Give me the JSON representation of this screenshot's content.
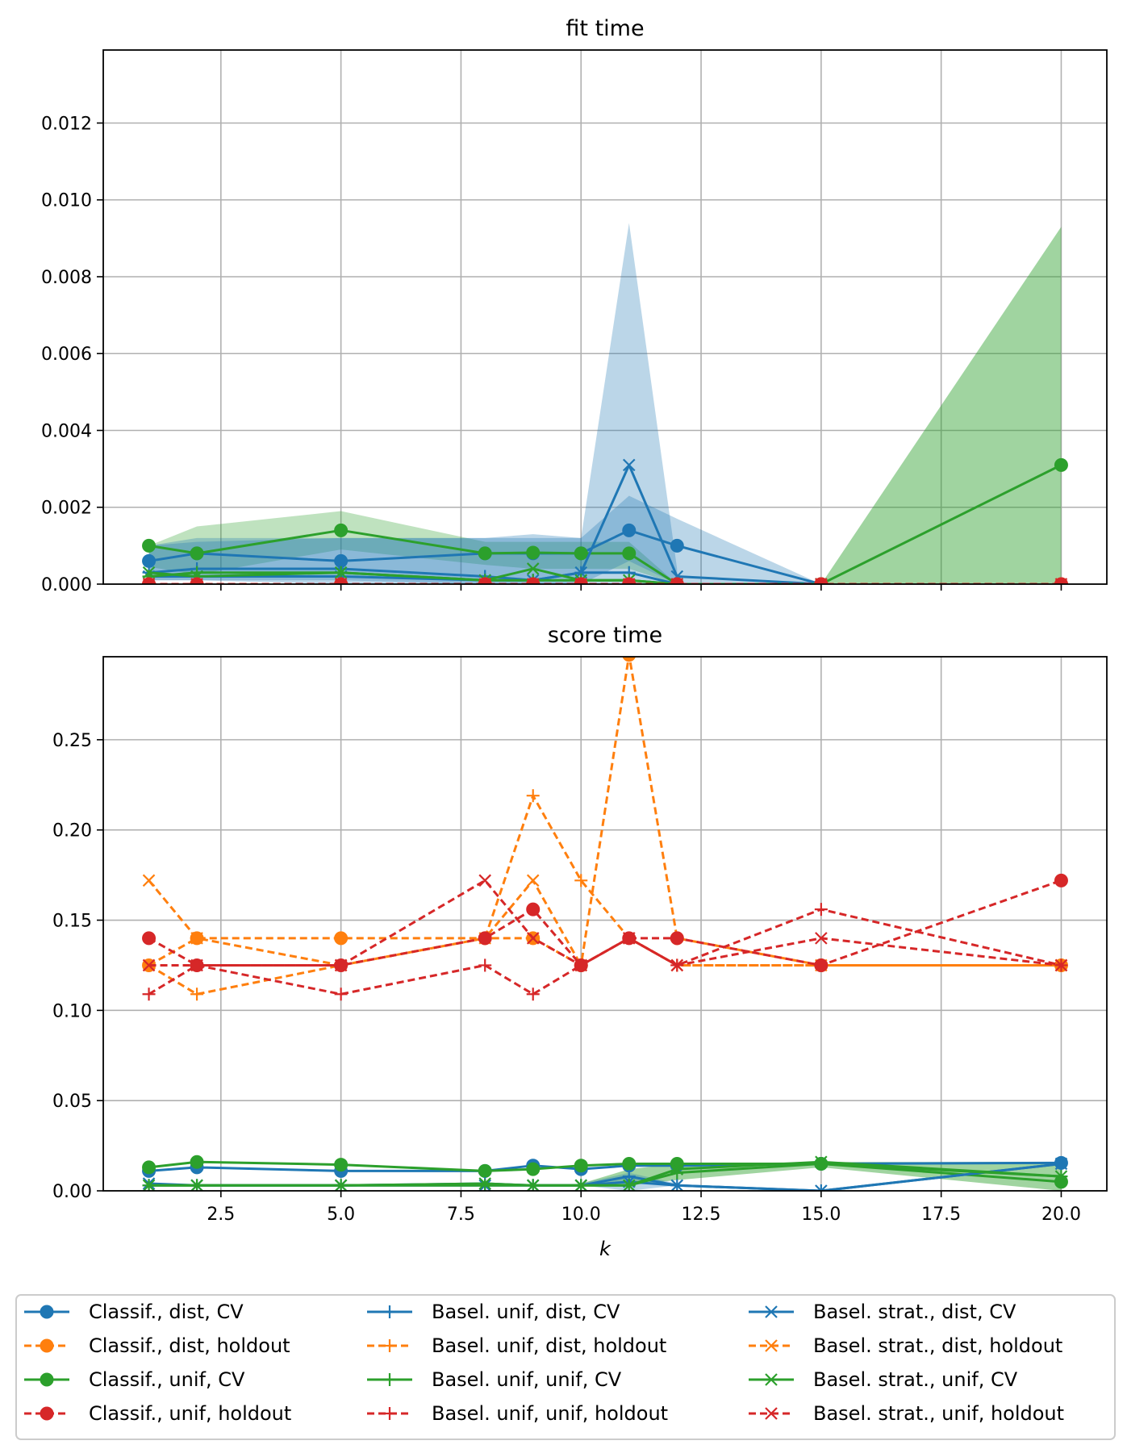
{
  "chart_data": [
    {
      "type": "line",
      "title": "fit time",
      "xlabel": "",
      "ylabel": "",
      "xlim": [
        0.05,
        20.95
      ],
      "ylim": [
        0,
        0.0139
      ],
      "xticks": [
        2.5,
        5.0,
        7.5,
        10.0,
        12.5,
        15.0,
        17.5,
        20.0
      ],
      "xticklabels": [],
      "yticks": [
        0.0,
        0.002,
        0.004,
        0.006,
        0.008,
        0.01,
        0.012
      ],
      "yticklabels": [
        "0.000",
        "0.002",
        "0.004",
        "0.006",
        "0.008",
        "0.010",
        "0.012"
      ],
      "grid": true,
      "bands": [
        {
          "color": "#2ca02c",
          "opacity": 0.3,
          "x": [
            1,
            2,
            5,
            8,
            9,
            10,
            11,
            12
          ],
          "lower": [
            0.00045,
            0.00025,
            0.0009,
            0.0005,
            0.0004,
            0.0004,
            0.0004,
            0.0
          ],
          "upper": [
            0.001,
            0.0015,
            0.0019,
            0.0011,
            0.0011,
            0.0011,
            0.0011,
            0.0
          ]
        },
        {
          "color": "#1f77b4",
          "opacity": 0.3,
          "x": [
            1,
            2,
            5,
            8,
            9,
            10,
            11,
            12
          ],
          "lower": [
            0.0001,
            0.0001,
            0.0001,
            0.0,
            0.0,
            0.0,
            0.0,
            0.0
          ],
          "upper": [
            0.001,
            0.0012,
            0.0012,
            0.0012,
            0.0013,
            0.0012,
            0.0094,
            0.0004
          ]
        },
        {
          "color": "#1f77b4",
          "opacity": 0.3,
          "x": [
            1,
            2,
            5,
            8,
            9,
            10,
            11,
            12,
            15
          ],
          "lower": [
            0.0001,
            0.0001,
            0.0,
            0.0,
            0.0,
            0.0,
            0.0006,
            0.0,
            0.0
          ],
          "upper": [
            0.001,
            0.0011,
            0.0012,
            0.0012,
            0.0012,
            0.0012,
            0.0023,
            0.0017,
            0.0
          ]
        },
        {
          "color": "#2ca02c",
          "opacity": 0.45,
          "x": [
            15,
            20
          ],
          "lower": [
            0.0,
            0.0
          ],
          "upper": [
            0.0,
            0.0093
          ]
        }
      ],
      "series": [
        {
          "name": "Classif., dist, CV",
          "color": "#1f77b4",
          "dash": "",
          "marker": "o",
          "x": [
            1,
            2,
            5,
            8,
            9,
            10,
            11,
            12,
            15
          ],
          "y": [
            0.0006,
            0.0008,
            0.0006,
            0.0008,
            0.0008,
            0.0008,
            0.0014,
            0.001,
            0.0
          ]
        },
        {
          "name": "Classif., unif, CV",
          "color": "#2ca02c",
          "dash": "",
          "marker": "o",
          "x": [
            1,
            2,
            5,
            8,
            9,
            10,
            11,
            12,
            15,
            20
          ],
          "y": [
            0.001,
            0.0008,
            0.0014,
            0.0008,
            0.00082,
            0.0008,
            0.0008,
            0.0,
            0.0,
            0.0031
          ]
        },
        {
          "name": "Basel. unif, dist, CV",
          "color": "#1f77b4",
          "dash": "",
          "marker": "+",
          "x": [
            1,
            2,
            5,
            8,
            9,
            10,
            11,
            12,
            15
          ],
          "y": [
            0.0003,
            0.0004,
            0.0004,
            0.0002,
            0.0001,
            0.0003,
            0.0003,
            0.0,
            0.0
          ]
        },
        {
          "name": "Basel. strat., dist, CV",
          "color": "#1f77b4",
          "dash": "",
          "marker": "x",
          "x": [
            1,
            2,
            5,
            8,
            9,
            10,
            11,
            12,
            15
          ],
          "y": [
            0.0002,
            0.0002,
            0.0002,
            0.0001,
            0.0001,
            0.0003,
            0.0031,
            0.0002,
            0.0
          ]
        },
        {
          "name": "Basel. unif, unif, CV",
          "color": "#2ca02c",
          "dash": "",
          "marker": "+",
          "x": [
            1,
            2,
            5,
            8,
            9,
            10,
            11,
            12,
            15
          ],
          "y": [
            0.0002,
            0.0003,
            0.0003,
            0.0001,
            0.0001,
            0.0001,
            0.0001,
            0.0,
            0.0
          ]
        },
        {
          "name": "Basel. strat., unif, CV",
          "color": "#2ca02c",
          "dash": "",
          "marker": "x",
          "x": [
            1,
            2,
            5,
            8,
            9,
            10,
            11,
            12,
            15
          ],
          "y": [
            0.0003,
            0.0002,
            0.0003,
            0.0001,
            0.0004,
            0.0001,
            0.0001,
            0.0,
            0.0
          ]
        },
        {
          "name": "Classif., dist, holdout",
          "color": "#ff7f0e",
          "dash": "9,5",
          "marker": "o",
          "x": [
            1,
            2,
            5,
            8,
            9,
            10,
            11,
            12,
            15,
            20
          ],
          "y": [
            0.0,
            0.0,
            0.0,
            0.0,
            0.0,
            0.0,
            0.0,
            0.0,
            0.0,
            0.0
          ]
        },
        {
          "name": "Classif., unif, holdout",
          "color": "#d62728",
          "dash": "9,5",
          "marker": "o",
          "x": [
            1,
            2,
            5,
            8,
            9,
            10,
            11,
            12,
            15,
            20
          ],
          "y": [
            0.0,
            0.0,
            0.0,
            0.0,
            0.0,
            0.0,
            0.0,
            0.0,
            0.0,
            0.0
          ]
        },
        {
          "name": "Basel. strat., unif, holdout",
          "color": "#d62728",
          "dash": "9,5",
          "marker": "x",
          "x": [
            1,
            2,
            5,
            8,
            9,
            10,
            11,
            12,
            15,
            20
          ],
          "y": [
            0.0,
            0.0,
            0.0,
            0.0,
            0.0,
            0.0,
            0.0,
            0.0,
            0.0,
            0.0
          ]
        }
      ]
    },
    {
      "type": "line",
      "title": "score time",
      "xlabel": "k",
      "ylabel": "",
      "xlim": [
        0.05,
        20.95
      ],
      "ylim": [
        0,
        0.296
      ],
      "xticks": [
        2.5,
        5.0,
        7.5,
        10.0,
        12.5,
        15.0,
        17.5,
        20.0
      ],
      "xticklabels": [
        "2.5",
        "5.0",
        "7.5",
        "10.0",
        "12.5",
        "15.0",
        "17.5",
        "20.0"
      ],
      "yticks": [
        0.0,
        0.05,
        0.1,
        0.15,
        0.2,
        0.25
      ],
      "yticklabels": [
        "0.00",
        "0.05",
        "0.10",
        "0.15",
        "0.20",
        "0.25"
      ],
      "grid": true,
      "bands": [
        {
          "color": "#2ca02c",
          "opacity": 0.45,
          "x": [
            10,
            11,
            12,
            15,
            20
          ],
          "lower": [
            0.003,
            0.003,
            0.006,
            0.013,
            0.0
          ],
          "upper": [
            0.004,
            0.012,
            0.015,
            0.016,
            0.016
          ]
        },
        {
          "color": "#1f77b4",
          "opacity": 0.3,
          "x": [
            10,
            11,
            12
          ],
          "lower": [
            0.003,
            0.0,
            0.003
          ],
          "upper": [
            0.004,
            0.01,
            0.004
          ]
        }
      ],
      "series": [
        {
          "name": "Basel. unif, dist, holdout",
          "color": "#ff7f0e",
          "dash": "9,5",
          "marker": "+",
          "x": [
            1,
            2,
            5,
            8,
            9,
            10,
            11,
            12,
            15,
            20
          ],
          "y": [
            0.125,
            0.109,
            0.125,
            0.14,
            0.219,
            0.172,
            0.14,
            0.125,
            0.125,
            0.125
          ]
        },
        {
          "name": "Basel. strat., dist, holdout",
          "color": "#ff7f0e",
          "dash": "9,5",
          "marker": "x",
          "x": [
            1,
            2,
            5,
            8,
            9,
            10,
            11,
            12,
            15,
            20
          ],
          "y": [
            0.172,
            0.14,
            0.125,
            0.14,
            0.172,
            0.125,
            0.14,
            0.125,
            0.125,
            0.125
          ]
        },
        {
          "name": "Classif., dist, holdout",
          "color": "#ff7f0e",
          "dash": "9,5",
          "marker": "o",
          "x": [
            1,
            2,
            5,
            8,
            9,
            10,
            11,
            12,
            15,
            20
          ],
          "y": [
            0.125,
            0.14,
            0.14,
            0.14,
            0.14,
            0.125,
            0.297,
            0.14,
            0.125,
            0.125
          ]
        },
        {
          "name": "Basel. unif, unif, holdout",
          "color": "#d62728",
          "dash": "9,5",
          "marker": "+",
          "x": [
            1,
            2,
            5,
            8,
            9,
            10,
            11,
            12,
            15,
            20
          ],
          "y": [
            0.109,
            0.125,
            0.109,
            0.125,
            0.109,
            0.125,
            0.14,
            0.125,
            0.156,
            0.125
          ]
        },
        {
          "name": "Basel. strat., unif, holdout",
          "color": "#d62728",
          "dash": "9,5",
          "marker": "x",
          "x": [
            1,
            2,
            5,
            8,
            9,
            10,
            11,
            12,
            15,
            20
          ],
          "y": [
            0.125,
            0.125,
            0.125,
            0.172,
            0.14,
            0.125,
            0.14,
            0.125,
            0.14,
            0.125
          ]
        },
        {
          "name": "Classif., unif, holdout",
          "color": "#d62728",
          "dash": "9,5",
          "marker": "o",
          "x": [
            1,
            2,
            5,
            8,
            9,
            10,
            11,
            12,
            15,
            20
          ],
          "y": [
            0.14,
            0.125,
            0.125,
            0.14,
            0.156,
            0.125,
            0.14,
            0.14,
            0.125,
            0.172
          ]
        },
        {
          "name": "Classif., dist, CV",
          "color": "#1f77b4",
          "dash": "",
          "marker": "o",
          "x": [
            1,
            2,
            5,
            8,
            9,
            10,
            11,
            12,
            15,
            20
          ],
          "y": [
            0.011,
            0.013,
            0.011,
            0.011,
            0.014,
            0.012,
            0.014,
            0.014,
            0.015,
            0.0155
          ]
        },
        {
          "name": "Classif., unif, CV",
          "color": "#2ca02c",
          "dash": "",
          "marker": "o",
          "x": [
            1,
            2,
            5,
            8,
            9,
            10,
            11,
            12,
            15,
            20
          ],
          "y": [
            0.013,
            0.016,
            0.0145,
            0.011,
            0.012,
            0.014,
            0.015,
            0.015,
            0.015,
            0.005
          ]
        },
        {
          "name": "Basel. unif, dist, CV",
          "color": "#1f77b4",
          "dash": "",
          "marker": "+",
          "x": [
            1,
            2,
            5,
            8,
            9,
            10,
            11,
            12,
            15,
            20
          ],
          "y": [
            0.003,
            0.003,
            0.003,
            0.004,
            0.003,
            0.003,
            0.008,
            0.003,
            0.0,
            0.015
          ]
        },
        {
          "name": "Basel. strat., dist, CV",
          "color": "#1f77b4",
          "dash": "",
          "marker": "x",
          "x": [
            1,
            2,
            5,
            8,
            9,
            10,
            11,
            12,
            15,
            20
          ],
          "y": [
            0.004,
            0.003,
            0.003,
            0.003,
            0.003,
            0.003,
            0.005,
            0.003,
            0.0,
            0.015
          ]
        },
        {
          "name": "Basel. unif, unif, CV",
          "color": "#2ca02c",
          "dash": "",
          "marker": "+",
          "x": [
            1,
            2,
            5,
            8,
            9,
            10,
            11,
            12,
            15,
            20
          ],
          "y": [
            0.003,
            0.003,
            0.003,
            0.003,
            0.003,
            0.003,
            0.003,
            0.01,
            0.015,
            0.008
          ]
        },
        {
          "name": "Basel. strat., unif, CV",
          "color": "#2ca02c",
          "dash": "",
          "marker": "x",
          "x": [
            1,
            2,
            5,
            8,
            9,
            10,
            11,
            12,
            15,
            20
          ],
          "y": [
            0.003,
            0.003,
            0.003,
            0.004,
            0.003,
            0.003,
            0.003,
            0.012,
            0.016,
            0.008
          ]
        }
      ]
    }
  ],
  "legend": {
    "placement": "bottom-center",
    "columns": 3,
    "entries": [
      {
        "label": "Classif., dist, CV",
        "color": "#1f77b4",
        "dash": "",
        "marker": "o"
      },
      {
        "label": "Classif., dist, holdout",
        "color": "#ff7f0e",
        "dash": "9,5",
        "marker": "o"
      },
      {
        "label": "Classif., unif, CV",
        "color": "#2ca02c",
        "dash": "",
        "marker": "o"
      },
      {
        "label": "Classif., unif, holdout",
        "color": "#d62728",
        "dash": "9,5",
        "marker": "o"
      },
      {
        "label": "Basel. unif, dist, CV",
        "color": "#1f77b4",
        "dash": "",
        "marker": "+"
      },
      {
        "label": "Basel. unif, dist, holdout",
        "color": "#ff7f0e",
        "dash": "9,5",
        "marker": "+"
      },
      {
        "label": "Basel. unif, unif, CV",
        "color": "#2ca02c",
        "dash": "",
        "marker": "+"
      },
      {
        "label": "Basel. unif, unif, holdout",
        "color": "#d62728",
        "dash": "9,5",
        "marker": "+"
      },
      {
        "label": "Basel. strat., dist, CV",
        "color": "#1f77b4",
        "dash": "",
        "marker": "x"
      },
      {
        "label": "Basel. strat., dist, holdout",
        "color": "#ff7f0e",
        "dash": "9,5",
        "marker": "x"
      },
      {
        "label": "Basel. strat., unif, CV",
        "color": "#2ca02c",
        "dash": "",
        "marker": "x"
      },
      {
        "label": "Basel. strat., unif, holdout",
        "color": "#d62728",
        "dash": "9,5",
        "marker": "x"
      }
    ]
  }
}
